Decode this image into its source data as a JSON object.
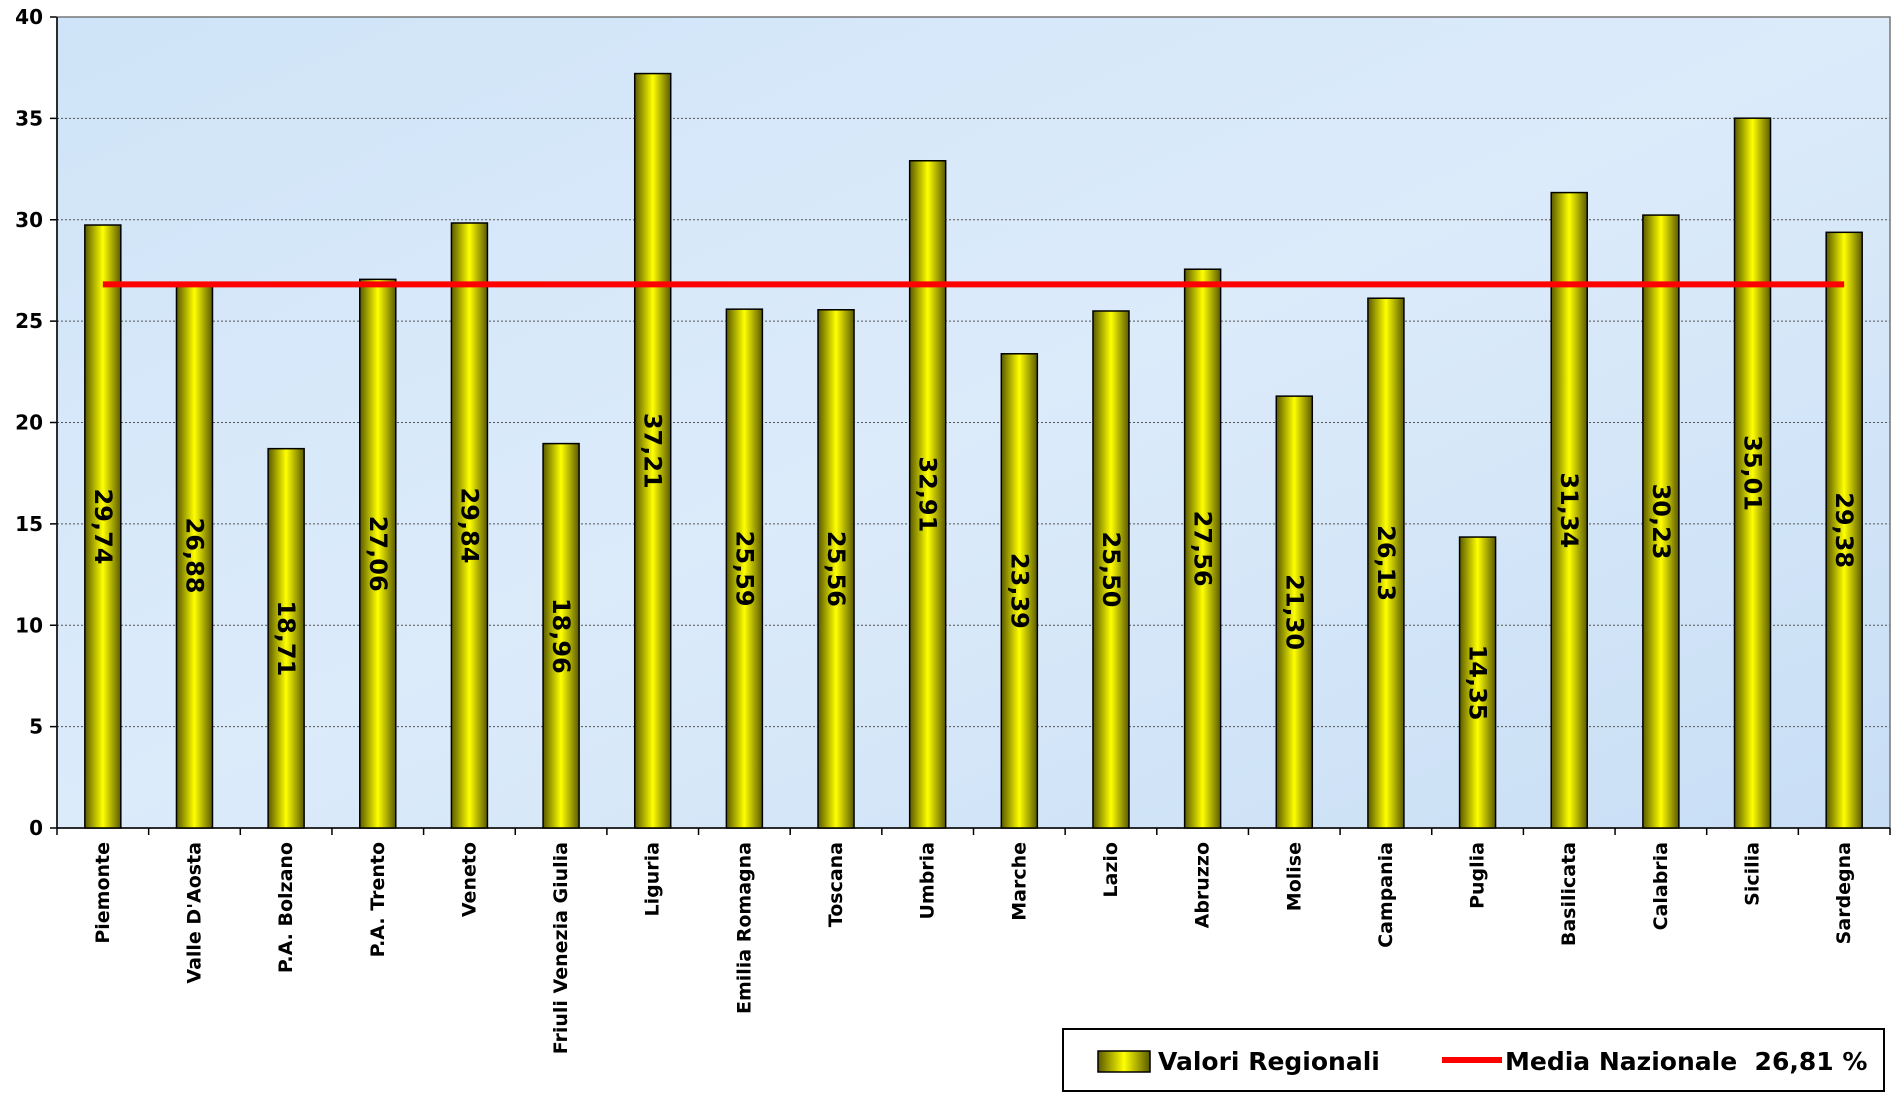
{
  "chart_data": {
    "type": "bar",
    "categories": [
      "Piemonte",
      "Valle D'Aosta",
      "P.A. Bolzano",
      "P.A. Trento",
      "Veneto",
      "Friuli Venezia Giulia",
      "Liguria",
      "Emilia Romagna",
      "Toscana",
      "Umbria",
      "Marche",
      "Lazio",
      "Abruzzo",
      "Molise",
      "Campania",
      "Puglia",
      "Basilicata",
      "Calabria",
      "Sicilia",
      "Sardegna"
    ],
    "series": [
      {
        "name": "Valori Regionali",
        "values": [
          29.74,
          26.88,
          18.71,
          27.06,
          29.84,
          18.96,
          37.21,
          25.59,
          25.56,
          32.91,
          23.39,
          25.5,
          27.56,
          21.3,
          26.13,
          14.35,
          31.34,
          30.23,
          35.01,
          29.38
        ],
        "data_labels": [
          "29,74",
          "26,88",
          "18,71",
          "27,06",
          "29,84",
          "18,96",
          "37,21",
          "25,59",
          "25,56",
          "32,91",
          "23,39",
          "25,50",
          "27,56",
          "21,30",
          "26,13",
          "14,35",
          "31,34",
          "30,23",
          "35,01",
          "29,38"
        ],
        "color": "#e5e500"
      }
    ],
    "reference_line": {
      "name": "Media Nazionale  26,81 %",
      "value": 26.81,
      "color": "#ff0000"
    },
    "yticks": [
      "0",
      "5",
      "10",
      "15",
      "20",
      "25",
      "30",
      "35",
      "40"
    ],
    "ylim": [
      0,
      40
    ],
    "ystep": 5,
    "grid": true,
    "legend_position": "bottom-right",
    "plot_background": "#cfe3f7"
  }
}
